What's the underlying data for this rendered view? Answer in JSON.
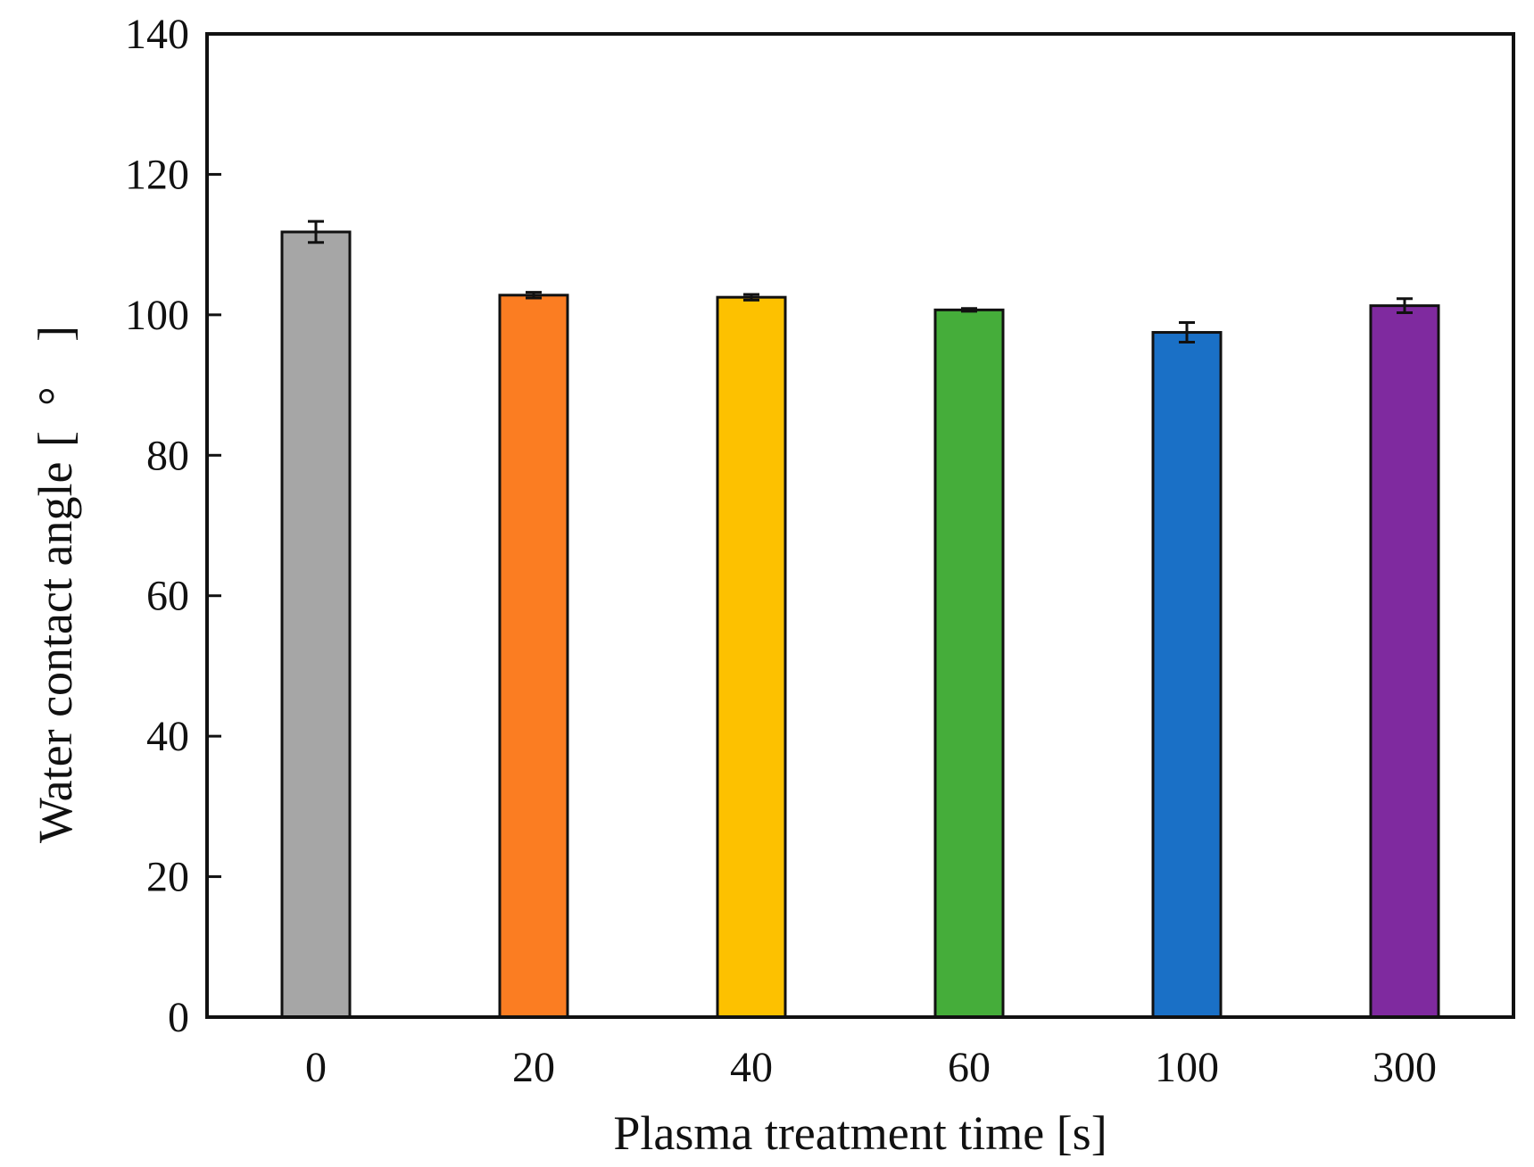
{
  "chart_data": {
    "type": "bar",
    "title": "",
    "xlabel": "Plasma treatment time [s]",
    "ylabel": "Water contact angle [°]",
    "ylabel_text": "Water contact angle",
    "ylabel_unit_open": "[",
    "ylabel_unit_symbol": "°",
    "ylabel_unit_close": "]",
    "categories": [
      "0",
      "20",
      "40",
      "60",
      "100",
      "300"
    ],
    "values": [
      111.8,
      102.8,
      102.5,
      100.7,
      97.5,
      101.3
    ],
    "errors": [
      1.5,
      0.4,
      0.4,
      0.2,
      1.4,
      1.0
    ],
    "colors": [
      "#a6a6a6",
      "#fb7d22",
      "#fdc100",
      "#45ad3a",
      "#1a70c6",
      "#7f2a9f"
    ],
    "ylim": [
      0,
      140
    ],
    "yticks": [
      0,
      20,
      40,
      60,
      80,
      100,
      120,
      140
    ],
    "grid": false,
    "legend": "none"
  }
}
